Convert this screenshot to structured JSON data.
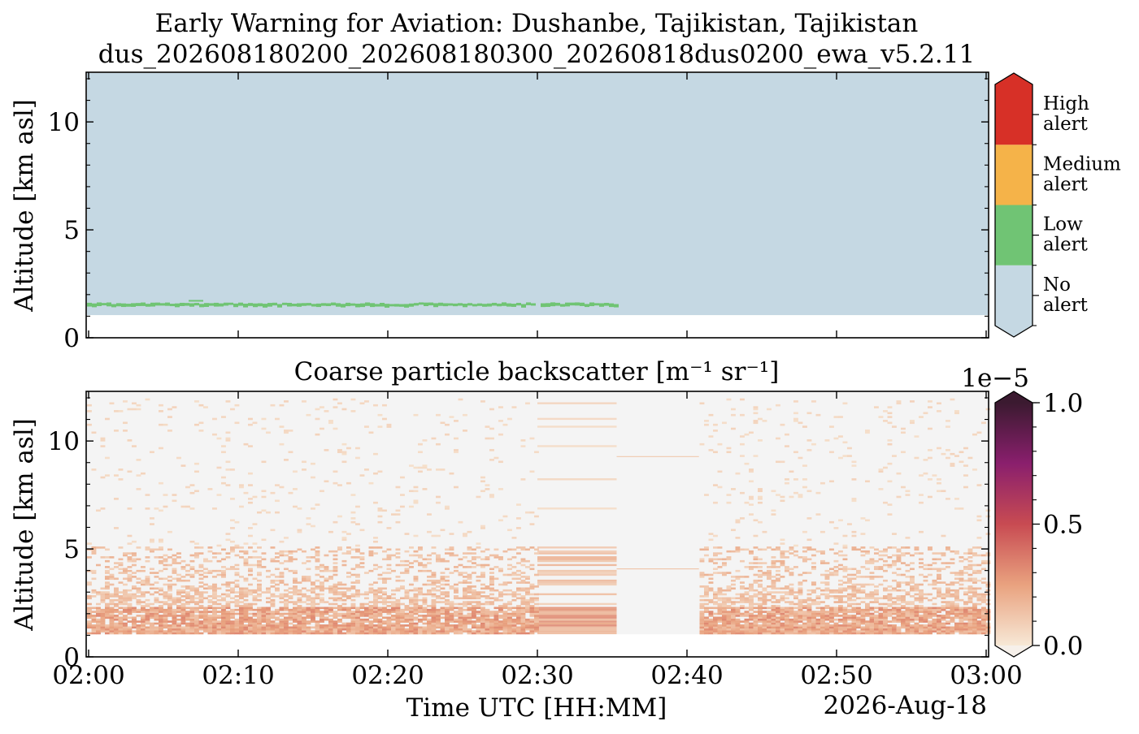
{
  "title_line1": "Early Warning for Aviation: Dushanbe, Tajikistan, Tajikistan",
  "title_line2": "dus_202608180200_202608180300_20260818dus0200_ewa_v5.2.11",
  "chart_data": [
    {
      "type": "heatmap",
      "panel": "top",
      "title": "",
      "ylabel": "Altitude [km asl]",
      "xlabel": "",
      "xlim": [
        "02:00",
        "03:00"
      ],
      "ylim": [
        0,
        12
      ],
      "yticks": [
        0,
        5,
        10
      ],
      "ground_altitude_km": 1.05,
      "data_gaps": [
        [
          "02:29.8",
          "02:30.0"
        ],
        [
          "02:35.3",
          "03:00"
        ]
      ],
      "alert_layer": {
        "level": "Low alert",
        "time_range": [
          "02:00",
          "02:35.3"
        ],
        "base_km": 1.4,
        "top_km": 1.6
      },
      "colorbar": {
        "categories": [
          "No\nalert",
          "Low\nalert",
          "Medium\nalert",
          "High\nalert"
        ],
        "colors": [
          "#c5d8e3",
          "#70c474",
          "#f5b349",
          "#d73027"
        ]
      }
    },
    {
      "type": "heatmap",
      "panel": "bottom",
      "title": "Coarse particle backscatter [m⁻¹ sr⁻¹]",
      "ylabel": "Altitude [km asl]",
      "xlabel": "Time UTC [HH:MM]",
      "date_label": "2026-Aug-18",
      "xlim": [
        "02:00",
        "03:00"
      ],
      "xticks": [
        "02:00",
        "02:10",
        "02:20",
        "02:30",
        "02:40",
        "02:50",
        "03:00"
      ],
      "ylim": [
        0,
        12
      ],
      "yticks": [
        0,
        5,
        10
      ],
      "ground_altitude_km": 1.05,
      "no_data_range": [
        "02:35.3",
        "02:40.8"
      ],
      "smooth_period": [
        "02:30",
        "02:35.3"
      ],
      "layers": [
        {
          "base_km": 1.05,
          "top_km": 2.4,
          "value": 0.25
        },
        {
          "base_km": 2.4,
          "top_km": 5.2,
          "value": 0.15
        },
        {
          "base_km": 5.2,
          "top_km": 12,
          "value": 0.06
        }
      ],
      "colorbar": {
        "label_multiplier": "1e−5",
        "ticks": [
          "0.0",
          "0.5",
          "1.0"
        ],
        "range": [
          0,
          1.0
        ],
        "colormap": [
          "#f7e8d6",
          "#e9a27f",
          "#c84b52",
          "#8a1f6d",
          "#3b1a30"
        ]
      }
    }
  ]
}
